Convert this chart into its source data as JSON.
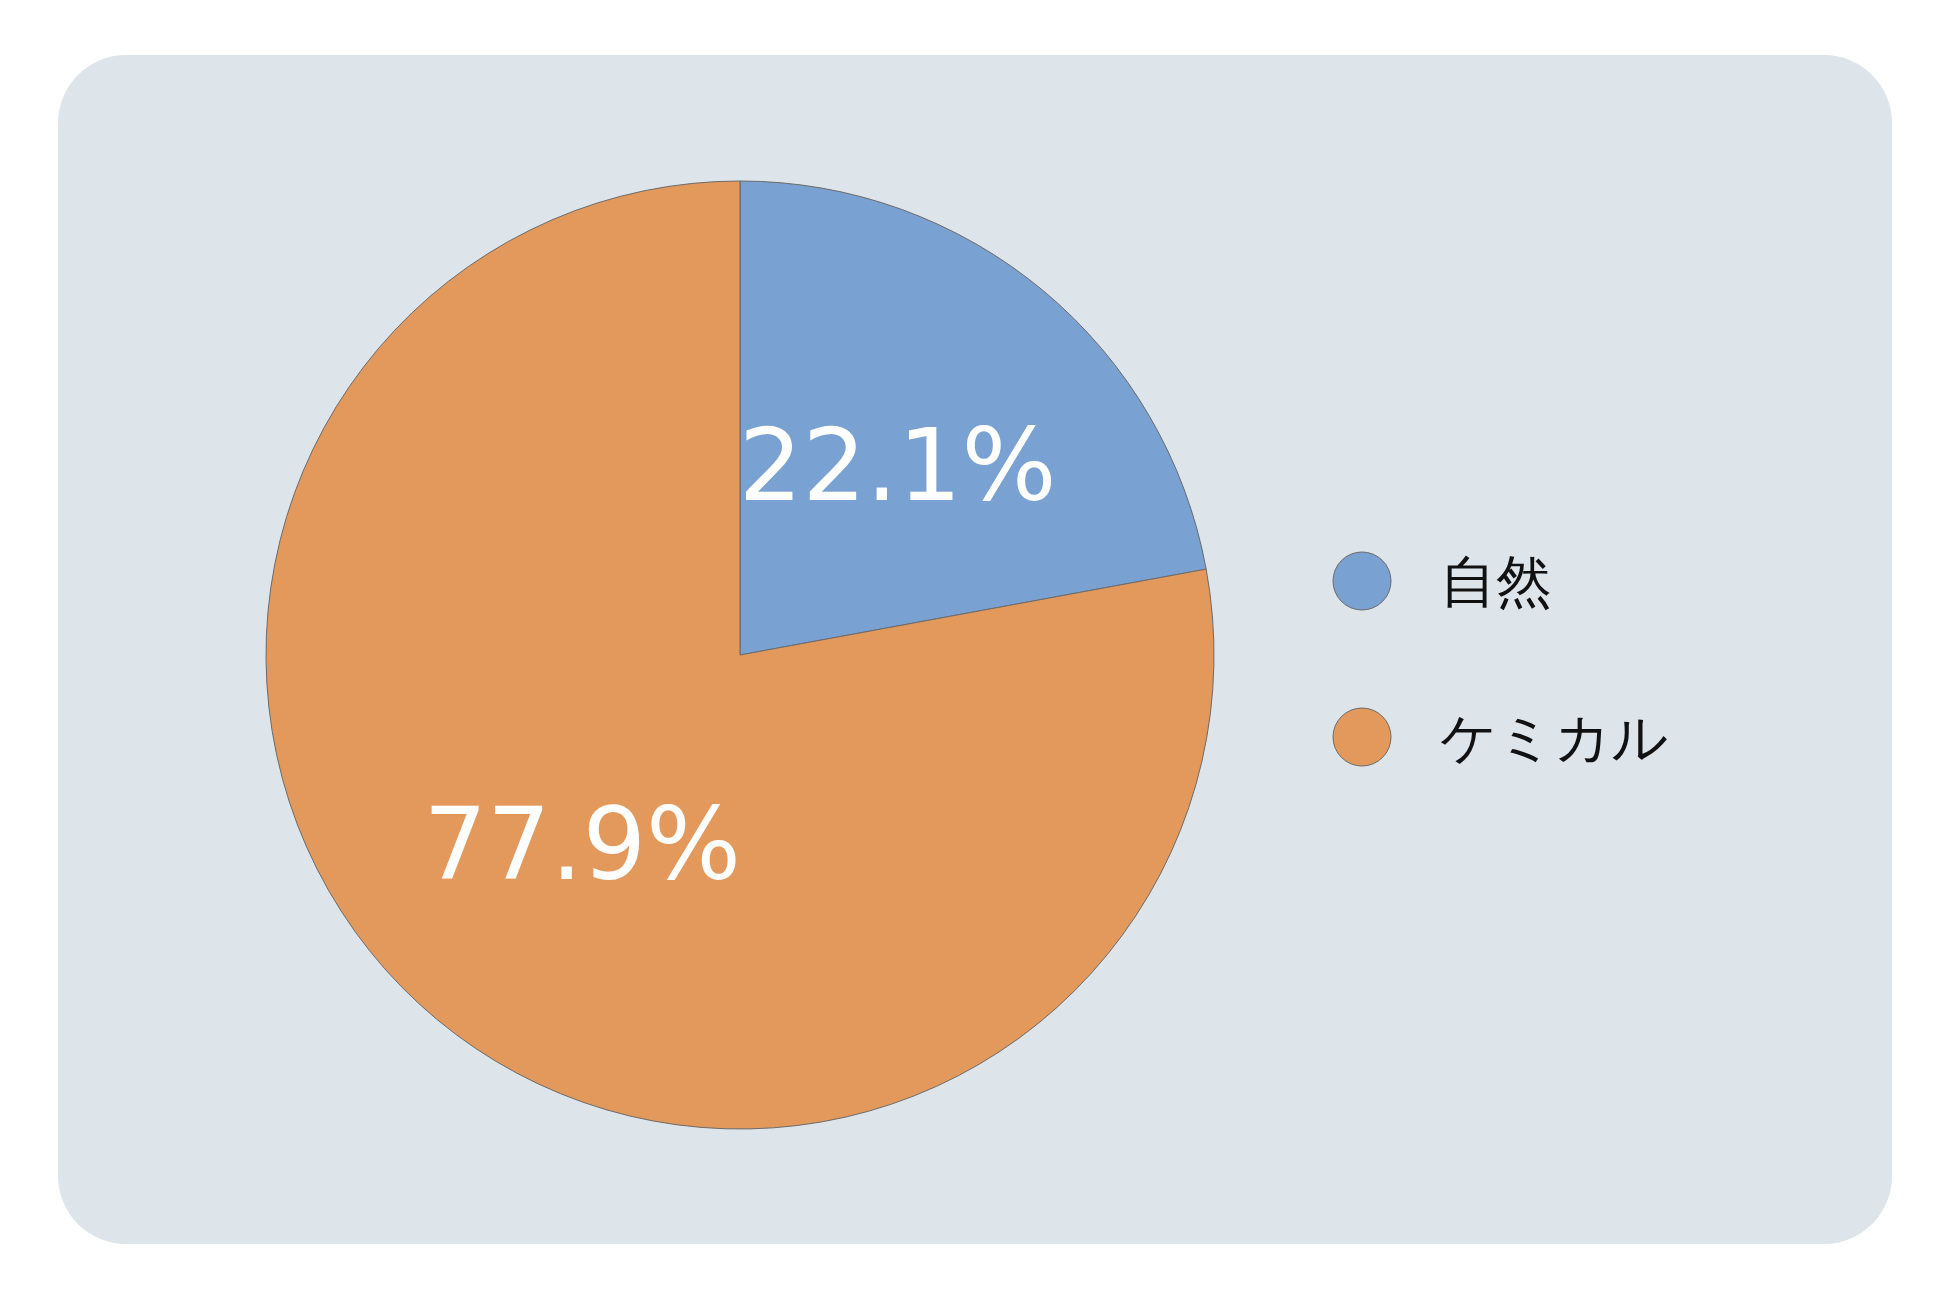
{
  "chart_data": {
    "type": "pie",
    "categories": [
      "自然",
      "ケミカル"
    ],
    "values": [
      22.1,
      77.9
    ],
    "colors": [
      "#79a1d1",
      "#e3995b"
    ],
    "value_labels": [
      "22.1%",
      "77.9%"
    ],
    "legend": "right"
  }
}
